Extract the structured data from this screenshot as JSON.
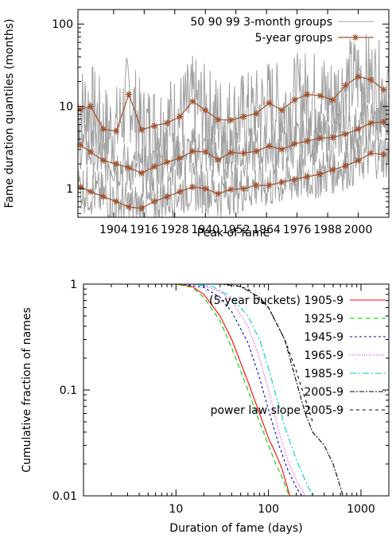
{
  "chart_data": [
    {
      "type": "line",
      "ylabel": "Fame duration quantiles (months)",
      "xlabel": "Peak of fame",
      "x_scale": "linear",
      "y_scale": "log",
      "xlim": [
        1890,
        2012
      ],
      "ylim": [
        0.45,
        150
      ],
      "x_ticks": [
        1904,
        1916,
        1928,
        1940,
        1952,
        1964,
        1976,
        1988,
        2000
      ],
      "y_ticks": [
        1,
        10,
        100
      ],
      "grid": false,
      "legend_placement": "top-right",
      "legend": [
        "50 90 99 3-month groups",
        "5-year groups"
      ],
      "series": [
        {
          "name": "5-year groups",
          "quantile": "99",
          "x": [
            1891,
            1895,
            1900,
            1905,
            1910,
            1915,
            1920,
            1925,
            1930,
            1935,
            1940,
            1945,
            1950,
            1955,
            1960,
            1965,
            1970,
            1975,
            1980,
            1985,
            1990,
            1995,
            2000,
            2005,
            2010
          ],
          "y": [
            9.2,
            10,
            5.3,
            5,
            14,
            5.2,
            5.8,
            6.3,
            7.5,
            11.5,
            9,
            6.9,
            6.8,
            7.5,
            8.2,
            11,
            9,
            12,
            14,
            13.5,
            12,
            18,
            23,
            21,
            16
          ]
        },
        {
          "name": "5-year groups",
          "quantile": "90",
          "x": [
            1891,
            1895,
            1900,
            1905,
            1910,
            1915,
            1920,
            1925,
            1930,
            1935,
            1940,
            1945,
            1950,
            1955,
            1960,
            1965,
            1970,
            1975,
            1980,
            1985,
            1990,
            1995,
            2000,
            2005,
            2010
          ],
          "y": [
            3.4,
            2.8,
            2.2,
            2.0,
            1.8,
            1.55,
            1.85,
            2.1,
            2.35,
            2.85,
            2.8,
            2.25,
            2.75,
            2.7,
            2.85,
            3.3,
            3.0,
            3.5,
            3.8,
            4.1,
            4.2,
            4.6,
            5.3,
            6.3,
            6.5
          ]
        },
        {
          "name": "5-year groups",
          "quantile": "50",
          "x": [
            1891,
            1895,
            1900,
            1905,
            1910,
            1915,
            1920,
            1925,
            1930,
            1935,
            1940,
            1945,
            1950,
            1955,
            1960,
            1965,
            1970,
            1975,
            1980,
            1985,
            1990,
            1995,
            2000,
            2005,
            2010
          ],
          "y": [
            1.05,
            0.92,
            0.8,
            0.7,
            0.6,
            0.58,
            0.7,
            0.8,
            0.92,
            1.05,
            1.0,
            0.87,
            0.98,
            1.0,
            1.1,
            1.1,
            1.2,
            1.3,
            1.4,
            1.5,
            1.7,
            1.9,
            2.2,
            2.7,
            2.6
          ]
        }
      ]
    },
    {
      "type": "line",
      "ylabel": "Cumulative fraction of names",
      "xlabel": "Duration of fame (days)",
      "x_scale": "log",
      "y_scale": "log",
      "xlim": [
        1,
        2000
      ],
      "ylim": [
        0.01,
        1
      ],
      "x_ticks": [
        10,
        100,
        1000
      ],
      "y_ticks": [
        0.01,
        0.1,
        1
      ],
      "y_tick_labels": [
        "0.01",
        "0.1",
        "1"
      ],
      "grid": false,
      "legend_placement": "top-right",
      "legend_title": "(5-year buckets)",
      "series": [
        {
          "name": "1905-9",
          "color": "#ff0000",
          "dash": "",
          "x": [
            1,
            10,
            15,
            20,
            30,
            40,
            60,
            80,
            100,
            120,
            140,
            160,
            170
          ],
          "y": [
            1,
            1,
            0.95,
            0.8,
            0.5,
            0.3,
            0.12,
            0.06,
            0.035,
            0.025,
            0.018,
            0.012,
            0.01
          ]
        },
        {
          "name": "1925-9",
          "color": "#00cc00",
          "dash": "6,4",
          "x": [
            1,
            10,
            15,
            20,
            30,
            40,
            60,
            80,
            100,
            120,
            140,
            160,
            170
          ],
          "y": [
            1,
            1,
            0.93,
            0.75,
            0.45,
            0.25,
            0.1,
            0.05,
            0.03,
            0.02,
            0.015,
            0.011,
            0.01
          ]
        },
        {
          "name": "1945-9",
          "color": "#0000cc",
          "dash": "3,3",
          "x": [
            1,
            12,
            20,
            30,
            40,
            60,
            80,
            100,
            130,
            160,
            200,
            230
          ],
          "y": [
            1,
            1,
            0.93,
            0.75,
            0.55,
            0.28,
            0.13,
            0.065,
            0.03,
            0.018,
            0.012,
            0.01
          ]
        },
        {
          "name": "1965-9",
          "color": "#ff00ff",
          "dash": "1,2",
          "x": [
            1,
            15,
            20,
            30,
            40,
            60,
            80,
            100,
            130,
            160,
            200,
            250
          ],
          "y": [
            1,
            1,
            0.97,
            0.85,
            0.7,
            0.4,
            0.2,
            0.1,
            0.04,
            0.022,
            0.014,
            0.01
          ]
        },
        {
          "name": "1985-9",
          "color": "#00cccc",
          "dash": "8,3,2,3",
          "x": [
            1,
            15,
            25,
            40,
            60,
            80,
            100,
            120,
            150,
            200,
            250,
            300
          ],
          "y": [
            1,
            1,
            0.95,
            0.75,
            0.5,
            0.3,
            0.16,
            0.09,
            0.045,
            0.022,
            0.014,
            0.01
          ]
        },
        {
          "name": "2005-9",
          "color": "#000000",
          "dash": "6,2,2,2",
          "x": [
            1,
            30,
            50,
            80,
            100,
            150,
            200,
            250,
            300,
            400,
            500,
            600,
            640
          ],
          "y": [
            1,
            1,
            0.95,
            0.75,
            0.6,
            0.3,
            0.12,
            0.06,
            0.04,
            0.03,
            0.02,
            0.012,
            0.01
          ]
        },
        {
          "name": "power law slope 2005-9",
          "color": "#000000",
          "dash": "4,4",
          "x": [
            1,
            40,
            60,
            100,
            150,
            200,
            300
          ],
          "y": [
            1,
            1,
            0.9,
            0.6,
            0.3,
            0.15,
            0.05
          ]
        }
      ]
    }
  ],
  "colors": {
    "noisy_line": "#a0a0a0",
    "bucket_line": "#a0522d"
  }
}
